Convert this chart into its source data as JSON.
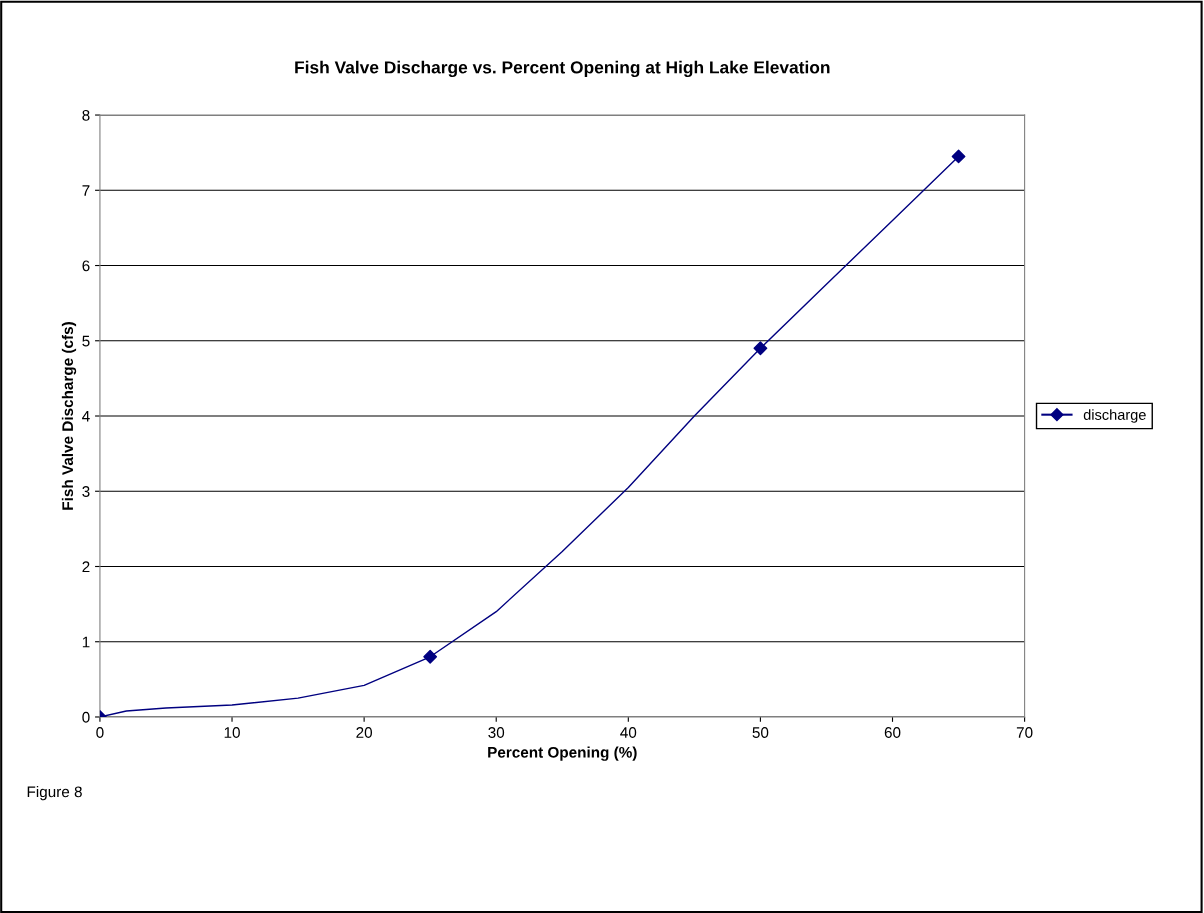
{
  "chart_data": {
    "type": "line",
    "title": "Fish Valve Discharge vs. Percent Opening at High Lake Elevation",
    "xlabel": "Percent Opening (%)",
    "ylabel": "Fish Valve Discharge (cfs)",
    "x": [
      0,
      25,
      50,
      65
    ],
    "series": [
      {
        "name": "discharge",
        "color": "#000080",
        "marker": "none",
        "x": [
          0,
          2,
          5,
          10,
          15,
          20,
          25,
          30,
          35,
          40,
          45,
          50,
          55,
          60,
          65
        ],
        "values": [
          0,
          0.08,
          0.12,
          0.16,
          0.25,
          0.42,
          0.8,
          1.4,
          2.2,
          3.05,
          4.0,
          4.9,
          5.75,
          6.6,
          7.45
        ]
      },
      {
        "type": "scatter",
        "color": "#000080",
        "values": [
          0,
          0.8,
          4.9,
          7.45
        ]
      }
    ],
    "xlim": [
      0,
      70
    ],
    "xticks": [
      0,
      10,
      20,
      30,
      40,
      50,
      60,
      70
    ],
    "ylim": [
      0,
      8
    ],
    "yticks": [
      0,
      1,
      2,
      3,
      4,
      5,
      6,
      7,
      8
    ],
    "grid": "y",
    "legend": "right",
    "marker": "diamond",
    "line_style": "solid",
    "annotations": [
      "Figure 8"
    ]
  }
}
